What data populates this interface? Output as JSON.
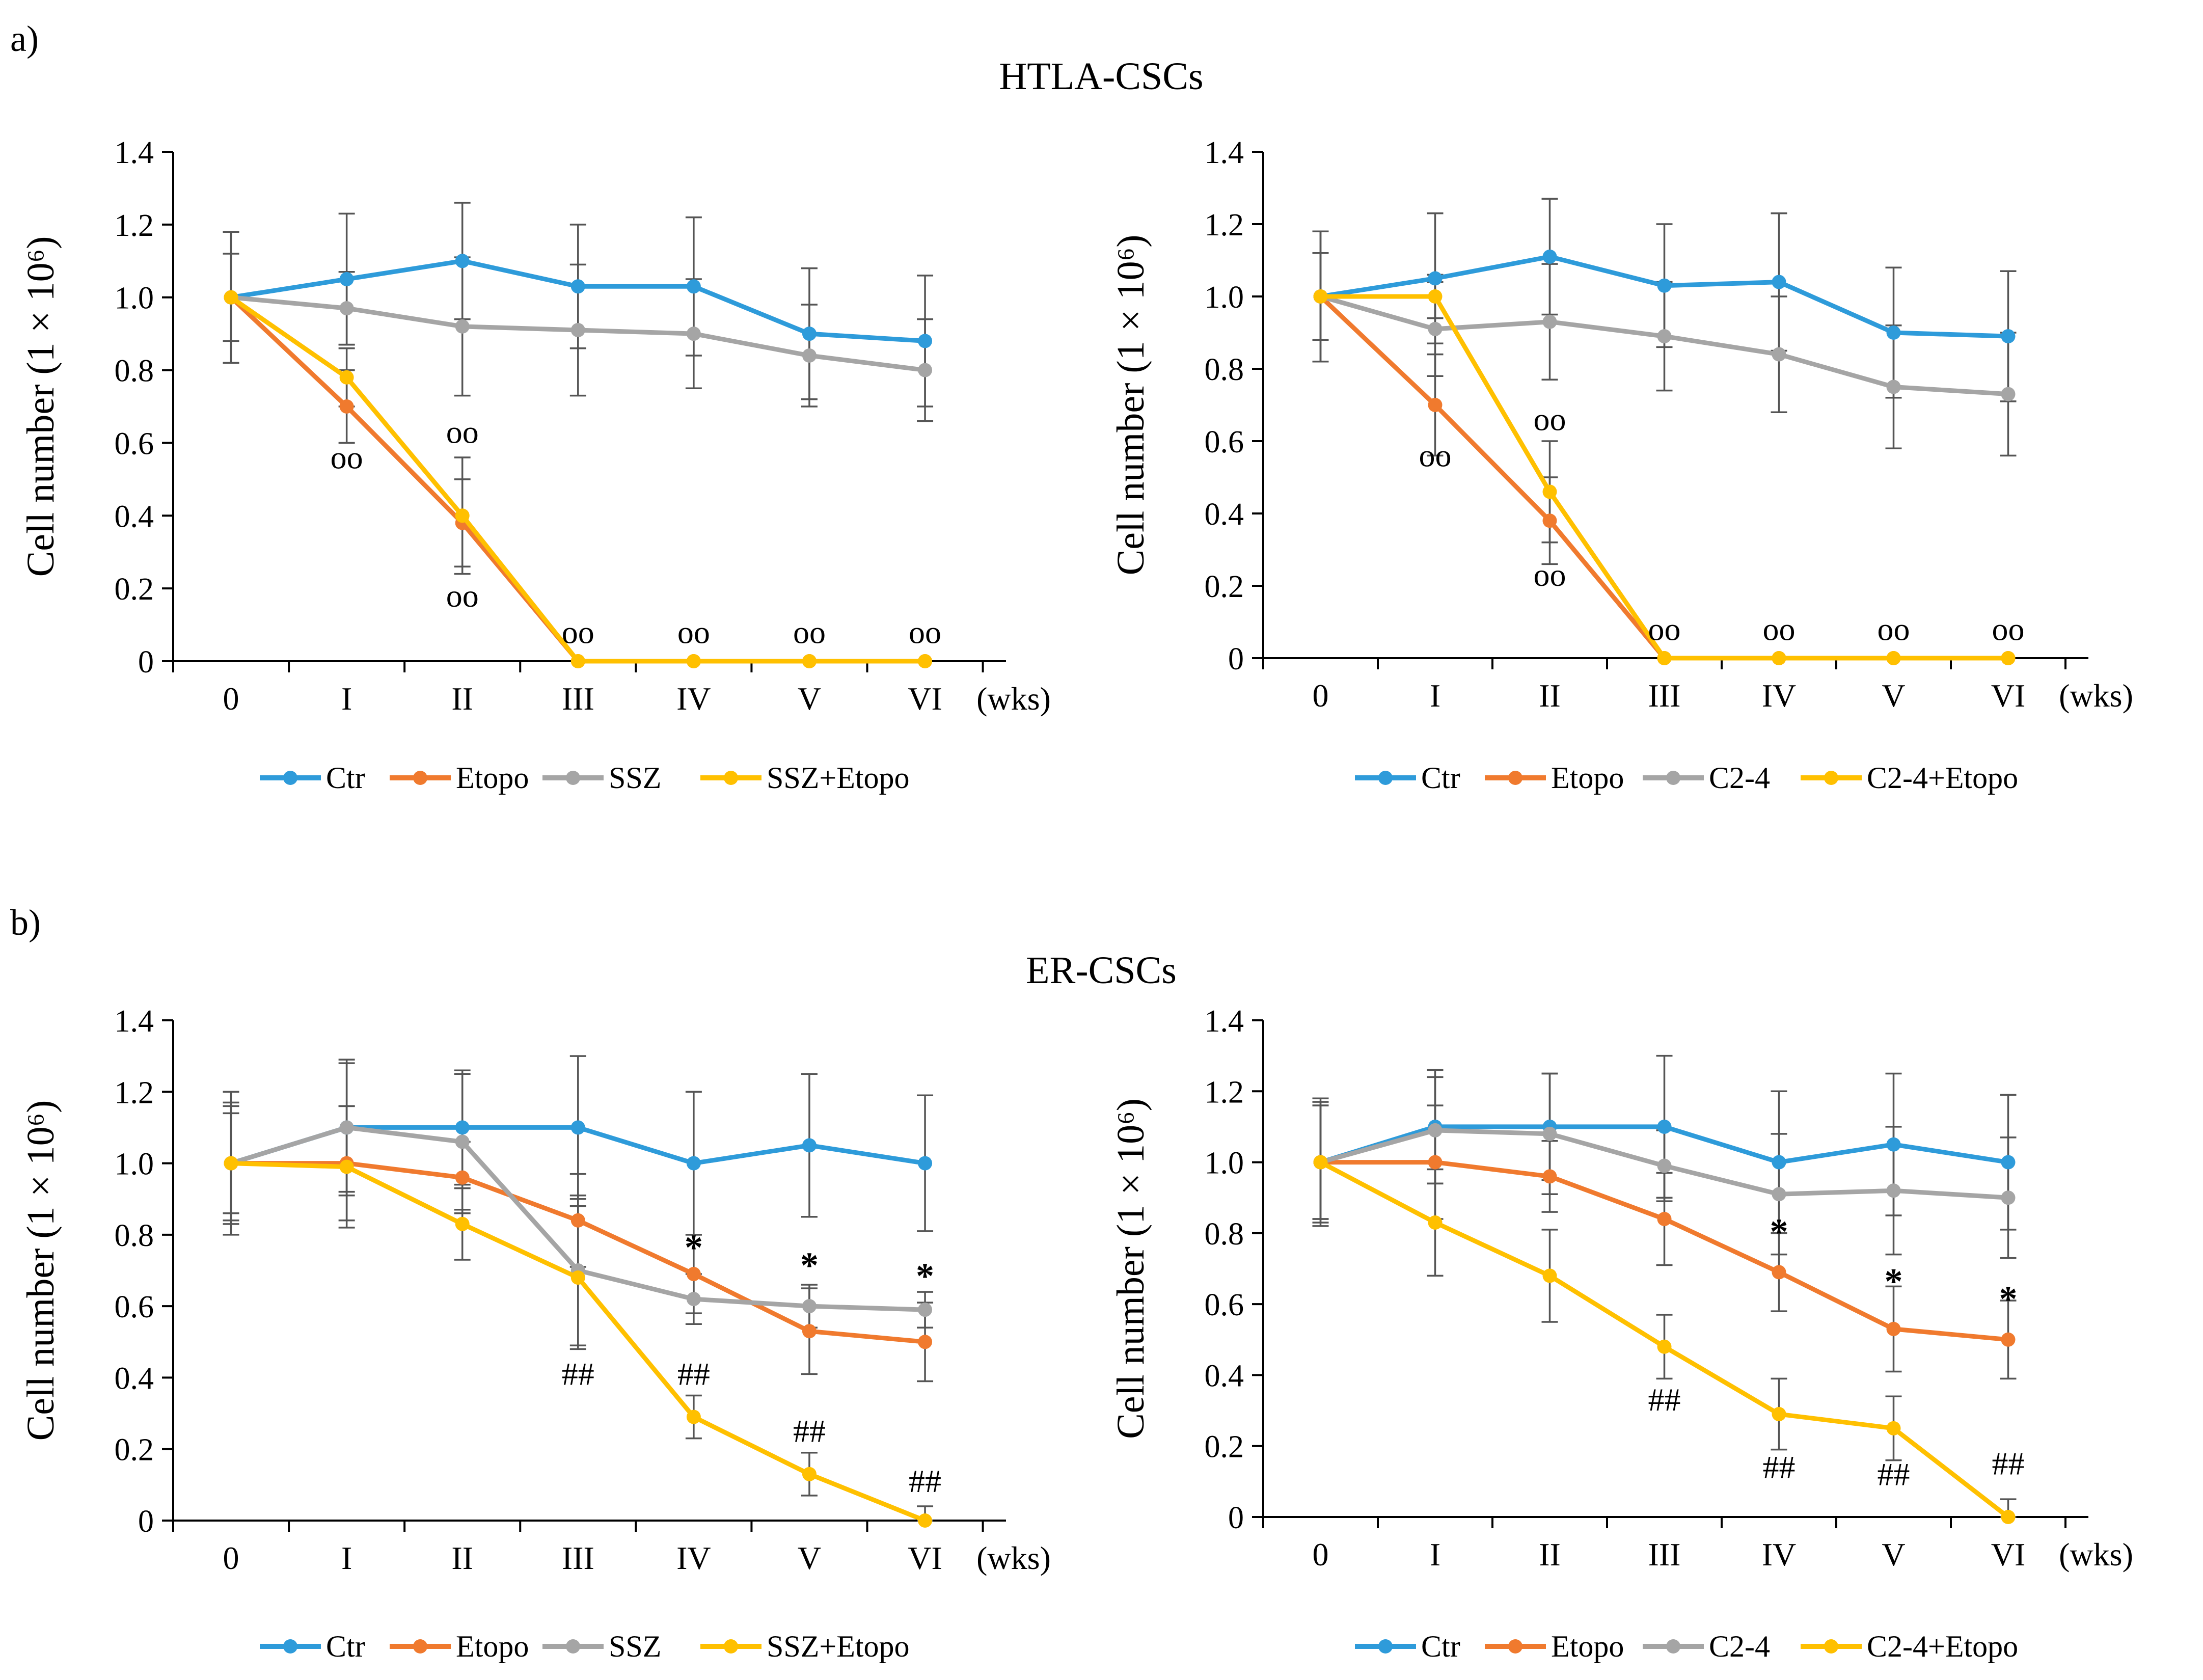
{
  "panels": [
    {
      "letter": "a)",
      "title": "HTLA-CSCs"
    },
    {
      "letter": "b)",
      "title": "ER-CSCs"
    }
  ],
  "colors": {
    "Ctr": "#2E9BDA",
    "Etopo": "#F07A2E",
    "SSZ": "#A5A5A5",
    "C2-4": "#A5A5A5",
    "Combo": "#FFC000",
    "axis": "#000000",
    "error": "#555555"
  },
  "chart_data": [
    {
      "type": "line",
      "title": "HTLA-CSCs",
      "panel": "a",
      "ylabel": "Cell number (1 × 10⁶)",
      "xunit": "(wks)",
      "categories": [
        "0",
        "I",
        "II",
        "III",
        "IV",
        "V",
        "VI"
      ],
      "ylim": [
        0,
        1.4
      ],
      "yticks": [
        "0",
        "0.2",
        "0.4",
        "0.6",
        "0.8",
        "1.0",
        "1.2",
        "1.4"
      ],
      "series": [
        {
          "name": "Ctr",
          "color": "#2E9BDA",
          "values": [
            1.0,
            1.05,
            1.1,
            1.03,
            1.03,
            0.9,
            0.88
          ],
          "errors": [
            0.18,
            0.18,
            0.16,
            0.17,
            0.19,
            0.18,
            0.18
          ]
        },
        {
          "name": "Etopo",
          "color": "#F07A2E",
          "values": [
            1.0,
            0.7,
            0.38,
            0.0,
            0.0,
            0.0,
            0.0
          ],
          "errors": [
            0.18,
            0.1,
            0.12,
            0.0,
            0.0,
            0.0,
            0.0
          ]
        },
        {
          "name": "SSZ",
          "color": "#A5A5A5",
          "values": [
            1.0,
            0.97,
            0.92,
            0.91,
            0.9,
            0.84,
            0.8
          ],
          "errors": [
            0.18,
            0.1,
            0.19,
            0.18,
            0.15,
            0.14,
            0.14
          ]
        },
        {
          "name": "SSZ+Etopo",
          "color": "#FFC000",
          "values": [
            1.0,
            0.78,
            0.4,
            0.0,
            0.0,
            0.0,
            0.0
          ],
          "errors": [
            0.12,
            0.08,
            0.16,
            0.0,
            0.0,
            0.0,
            0.0
          ]
        }
      ],
      "annotations": [
        {
          "text": "oo",
          "category": "I",
          "y": 0.53
        },
        {
          "text": "oo",
          "category": "II",
          "y": 0.6
        },
        {
          "text": "oo",
          "category": "II",
          "y": 0.15
        },
        {
          "text": "oo",
          "category": "III",
          "y": 0.05
        },
        {
          "text": "oo",
          "category": "IV",
          "y": 0.05
        },
        {
          "text": "oo",
          "category": "V",
          "y": 0.05
        },
        {
          "text": "oo",
          "category": "VI",
          "y": 0.05
        }
      ]
    },
    {
      "type": "line",
      "title": "HTLA-CSCs",
      "panel": "a",
      "ylabel": "Cell number (1 × 10⁶)",
      "xunit": "(wks)",
      "categories": [
        "0",
        "I",
        "II",
        "III",
        "IV",
        "V",
        "VI"
      ],
      "ylim": [
        0,
        1.4
      ],
      "yticks": [
        "0",
        "0.2",
        "0.4",
        "0.6",
        "0.8",
        "1.0",
        "1.2",
        "1.4"
      ],
      "series": [
        {
          "name": "Ctr",
          "color": "#2E9BDA",
          "values": [
            1.0,
            1.05,
            1.11,
            1.03,
            1.04,
            0.9,
            0.89
          ],
          "errors": [
            0.18,
            0.18,
            0.16,
            0.17,
            0.19,
            0.18,
            0.18
          ]
        },
        {
          "name": "Etopo",
          "color": "#F07A2E",
          "values": [
            1.0,
            0.7,
            0.38,
            0.0,
            0.0,
            0.0,
            0.0
          ],
          "errors": [
            0.18,
            0.14,
            0.12,
            0.0,
            0.0,
            0.0,
            0.0
          ]
        },
        {
          "name": "C2-4",
          "color": "#A5A5A5",
          "values": [
            1.0,
            0.91,
            0.93,
            0.89,
            0.84,
            0.75,
            0.73
          ],
          "errors": [
            0.18,
            0.13,
            0.16,
            0.15,
            0.16,
            0.17,
            0.17
          ]
        },
        {
          "name": "C2-4+Etopo",
          "color": "#FFC000",
          "values": [
            1.0,
            1.0,
            0.46,
            0.0,
            0.0,
            0.0,
            0.0
          ],
          "errors": [
            0.12,
            0.06,
            0.14,
            0.0,
            0.0,
            0.0,
            0.0
          ]
        }
      ],
      "annotations": [
        {
          "text": "oo",
          "category": "I",
          "y": 0.53
        },
        {
          "text": "oo",
          "category": "II",
          "y": 0.63
        },
        {
          "text": "oo",
          "category": "II",
          "y": 0.2
        },
        {
          "text": "oo",
          "category": "III",
          "y": 0.05
        },
        {
          "text": "oo",
          "category": "IV",
          "y": 0.05
        },
        {
          "text": "oo",
          "category": "V",
          "y": 0.05
        },
        {
          "text": "oo",
          "category": "VI",
          "y": 0.05
        }
      ]
    },
    {
      "type": "line",
      "title": "ER-CSCs",
      "panel": "b",
      "ylabel": "Cell number (1 × 10⁶)",
      "xunit": "(wks)",
      "categories": [
        "0",
        "I",
        "II",
        "III",
        "IV",
        "V",
        "VI"
      ],
      "ylim": [
        0,
        1.4
      ],
      "yticks": [
        "0",
        "0.2",
        "0.4",
        "0.6",
        "0.8",
        "1.0",
        "1.2",
        "1.4"
      ],
      "series": [
        {
          "name": "Ctr",
          "color": "#2E9BDA",
          "values": [
            1.0,
            1.1,
            1.1,
            1.1,
            1.0,
            1.05,
            1.0
          ],
          "errors": [
            0.2,
            0.19,
            0.16,
            0.2,
            0.2,
            0.2,
            0.19
          ]
        },
        {
          "name": "Etopo",
          "color": "#F07A2E",
          "values": [
            1.0,
            1.0,
            0.96,
            0.84,
            0.69,
            0.53,
            0.5
          ],
          "errors": [
            0.16,
            0.16,
            0.1,
            0.13,
            0.11,
            0.12,
            0.11
          ]
        },
        {
          "name": "SSZ",
          "color": "#A5A5A5",
          "values": [
            1.0,
            1.1,
            1.06,
            0.7,
            0.62,
            0.6,
            0.59
          ],
          "errors": [
            0.17,
            0.18,
            0.19,
            0.21,
            0.07,
            0.06,
            0.05
          ]
        },
        {
          "name": "SSZ+Etopo",
          "color": "#FFC000",
          "values": [
            1.0,
            0.99,
            0.83,
            0.68,
            0.29,
            0.13,
            0.0
          ],
          "errors": [
            0.14,
            0.17,
            0.1,
            0.2,
            0.06,
            0.06,
            0.04
          ]
        }
      ],
      "annotations": [
        {
          "text": "##",
          "category": "III",
          "y": 0.38
        },
        {
          "text": "*",
          "category": "IV",
          "y": 0.73
        },
        {
          "text": "##",
          "category": "IV",
          "y": 0.38
        },
        {
          "text": "*",
          "category": "V",
          "y": 0.68
        },
        {
          "text": "##",
          "category": "V",
          "y": 0.22
        },
        {
          "text": "*",
          "category": "VI",
          "y": 0.65
        },
        {
          "text": "##",
          "category": "VI",
          "y": 0.08
        }
      ]
    },
    {
      "type": "line",
      "title": "ER-CSCs",
      "panel": "b",
      "ylabel": "Cell number (1 × 10⁶)",
      "xunit": "(wks)",
      "categories": [
        "0",
        "I",
        "II",
        "III",
        "IV",
        "V",
        "VI"
      ],
      "ylim": [
        0,
        1.4
      ],
      "yticks": [
        "0",
        "0.2",
        "0.4",
        "0.6",
        "0.8",
        "1.0",
        "1.2",
        "1.4"
      ],
      "series": [
        {
          "name": "Ctr",
          "color": "#2E9BDA",
          "values": [
            1.0,
            1.1,
            1.1,
            1.1,
            1.0,
            1.05,
            1.0
          ],
          "errors": [
            0.18,
            0.16,
            0.15,
            0.2,
            0.2,
            0.2,
            0.19
          ]
        },
        {
          "name": "Etopo",
          "color": "#F07A2E",
          "values": [
            1.0,
            1.0,
            0.96,
            0.84,
            0.69,
            0.53,
            0.5
          ],
          "errors": [
            0.16,
            0.16,
            0.1,
            0.13,
            0.11,
            0.12,
            0.11
          ]
        },
        {
          "name": "C2-4",
          "color": "#A5A5A5",
          "values": [
            1.0,
            1.09,
            1.08,
            0.99,
            0.91,
            0.92,
            0.9
          ],
          "errors": [
            0.17,
            0.15,
            0.17,
            0.1,
            0.17,
            0.18,
            0.17
          ]
        },
        {
          "name": "C2-4+Etopo",
          "color": "#FFC000",
          "values": [
            1.0,
            0.83,
            0.68,
            0.48,
            0.29,
            0.25,
            0.0
          ],
          "errors": [
            0.16,
            0.15,
            0.13,
            0.09,
            0.1,
            0.09,
            0.05
          ]
        }
      ],
      "annotations": [
        {
          "text": "##",
          "category": "III",
          "y": 0.3
        },
        {
          "text": "*",
          "category": "IV",
          "y": 0.77
        },
        {
          "text": "##",
          "category": "IV",
          "y": 0.11
        },
        {
          "text": "*",
          "category": "V",
          "y": 0.63
        },
        {
          "text": "##",
          "category": "V",
          "y": 0.09
        },
        {
          "text": "*",
          "category": "VI",
          "y": 0.58
        },
        {
          "text": "##",
          "category": "VI",
          "y": 0.12
        }
      ]
    }
  ]
}
